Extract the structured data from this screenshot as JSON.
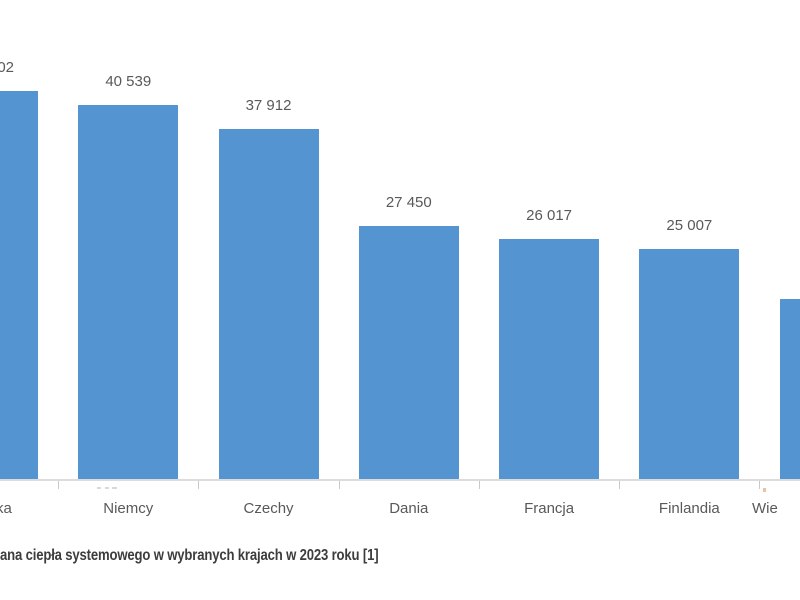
{
  "colors": {
    "bar": "#5494d1",
    "axis_line": "#dcdcdc",
    "tick": "#c9c9c9",
    "label_text": "#595959",
    "caption_text": "#3d3d3d",
    "artifact_orange": "#e5b88f",
    "background": "#ffffff"
  },
  "caption": {
    "text": "ana ciepła systemowego w wybranych krajach w 2023 roku [1]",
    "cut": "left"
  },
  "chart_data": {
    "type": "bar",
    "title": "",
    "xlabel": "",
    "ylabel": "",
    "ylim": [
      0,
      51900
    ],
    "grid": false,
    "legend": false,
    "value_axis_visible": false,
    "caption": "ana ciepła systemowego w wybranych krajach w 2023 roku [1]",
    "categories": [
      "ka",
      "Niemcy",
      "Czechy",
      "Dania",
      "Francja",
      "Finlandia",
      "Wie"
    ],
    "points": [
      {
        "category": "ka",
        "value": 42100,
        "value_label": "02",
        "estimated": true,
        "cut": "left"
      },
      {
        "category": "Niemcy",
        "value": 40539,
        "value_label": "40 539",
        "estimated": false,
        "cut": null
      },
      {
        "category": "Czechy",
        "value": 37912,
        "value_label": "37 912",
        "estimated": false,
        "cut": null
      },
      {
        "category": "Dania",
        "value": 27450,
        "value_label": "27 450",
        "estimated": false,
        "cut": null
      },
      {
        "category": "Francja",
        "value": 26017,
        "value_label": "26 017",
        "estimated": false,
        "cut": null
      },
      {
        "category": "Finlandia",
        "value": 25007,
        "value_label": "25 007",
        "estimated": false,
        "cut": null
      },
      {
        "category": "Wie",
        "value": 19570,
        "value_label": "",
        "estimated": true,
        "cut": "right"
      }
    ]
  }
}
